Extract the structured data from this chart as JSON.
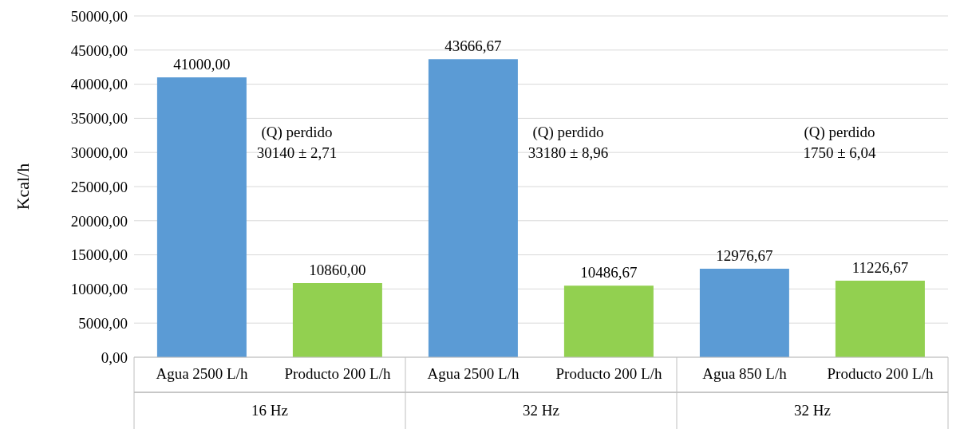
{
  "chart_data": {
    "type": "bar",
    "ylabel": "Kcal/h",
    "categories": [
      "Agua 2500 L/h",
      "Producto 200 L/h",
      "Agua 2500 L/h",
      "Producto 200 L/h",
      "Agua 850 L/h",
      "Producto 200 L/h"
    ],
    "values": [
      41000,
      10860,
      43666.67,
      10486.67,
      12976.67,
      11226.67
    ],
    "colors": [
      "#5b9bd5",
      "#92d050",
      "#5b9bd5",
      "#92d050",
      "#5b9bd5",
      "#92d050"
    ],
    "value_labels": [
      "41000,00",
      "10860,00",
      "43666,67",
      "10486,67",
      "12976,67",
      "11226,67"
    ],
    "ylim": [
      0,
      50000
    ],
    "yticks": [
      {
        "value": 0,
        "label": "0,00"
      },
      {
        "value": 5000,
        "label": "5000,00"
      },
      {
        "value": 10000,
        "label": "10000,00"
      },
      {
        "value": 15000,
        "label": "15000,00"
      },
      {
        "value": 20000,
        "label": "20000,00"
      },
      {
        "value": 25000,
        "label": "25000,00"
      },
      {
        "value": 30000,
        "label": "30000,00"
      },
      {
        "value": 35000,
        "label": "35000,00"
      },
      {
        "value": 40000,
        "label": "40000,00"
      },
      {
        "value": 45000,
        "label": "45000,00"
      },
      {
        "value": 50000,
        "label": "50000,00"
      }
    ],
    "grid": "y",
    "annotations": [
      "16 Hz",
      "32 Hz",
      "32 Hz",
      "(Q) perdido\n30140 ± 2,71",
      "(Q) perdido\n33180 ± 8,96",
      "(Q) perdido\n1750 ± 6,04"
    ]
  }
}
